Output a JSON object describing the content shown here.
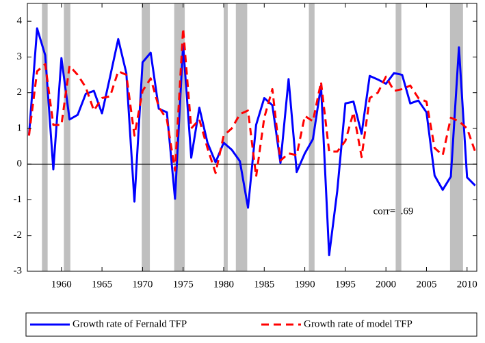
{
  "chart_data": {
    "type": "line",
    "x": [
      1956,
      1957,
      1958,
      1959,
      1960,
      1961,
      1962,
      1963,
      1964,
      1965,
      1966,
      1967,
      1968,
      1969,
      1970,
      1971,
      1972,
      1973,
      1974,
      1975,
      1976,
      1977,
      1978,
      1979,
      1980,
      1981,
      1982,
      1983,
      1984,
      1985,
      1986,
      1987,
      1988,
      1989,
      1990,
      1991,
      1992,
      1993,
      1994,
      1995,
      1996,
      1997,
      1998,
      1999,
      2000,
      2001,
      2002,
      2003,
      2004,
      2005,
      2006,
      2007,
      2008,
      2009,
      2010,
      2011
    ],
    "series": [
      {
        "name": "Growth rate of Fernald TFP",
        "color": "#0000ff",
        "dash": "solid",
        "values": [
          0.8,
          3.8,
          3.05,
          -0.15,
          2.97,
          1.25,
          1.38,
          1.97,
          2.05,
          1.42,
          2.45,
          3.5,
          2.55,
          -1.05,
          2.85,
          3.12,
          1.55,
          1.45,
          -0.97,
          3.35,
          0.18,
          1.58,
          0.6,
          0.05,
          0.6,
          0.4,
          0.08,
          -1.22,
          1.1,
          1.85,
          1.65,
          0.03,
          2.38,
          -0.22,
          0.3,
          0.7,
          2.2,
          -2.55,
          -0.75,
          1.7,
          1.75,
          0.85,
          2.47,
          2.37,
          2.25,
          2.55,
          2.5,
          1.7,
          1.78,
          1.45,
          -0.32,
          -0.72,
          -0.35,
          3.27,
          -0.37,
          -0.6
        ]
      },
      {
        "name": "Growth rate of model TFP",
        "color": "#ff0000",
        "dash": "dashed",
        "values": [
          0.8,
          2.6,
          2.8,
          1.1,
          1.1,
          2.75,
          2.5,
          2.15,
          1.5,
          1.85,
          1.9,
          2.6,
          2.5,
          0.8,
          2.05,
          2.4,
          1.6,
          1.25,
          -0.18,
          3.8,
          1.0,
          1.25,
          0.45,
          -0.25,
          0.8,
          1.0,
          1.4,
          1.5,
          -0.35,
          1.3,
          2.1,
          0.1,
          0.3,
          0.25,
          1.35,
          1.2,
          2.3,
          0.35,
          0.35,
          0.65,
          1.45,
          0.2,
          1.85,
          2.0,
          2.45,
          2.05,
          2.1,
          2.2,
          1.85,
          1.75,
          0.45,
          0.25,
          1.3,
          1.2,
          1.0,
          0.35
        ]
      }
    ],
    "recessions": [
      [
        1957.6,
        1958.3
      ],
      [
        1960.3,
        1961.1
      ],
      [
        1969.9,
        1970.9
      ],
      [
        1973.9,
        1975.2
      ],
      [
        1980.0,
        1980.5
      ],
      [
        1981.5,
        1982.9
      ],
      [
        1990.5,
        1991.2
      ],
      [
        2001.2,
        2001.9
      ],
      [
        2007.9,
        2009.5
      ]
    ],
    "recession_color": "#bfbfbf",
    "annotation": "corr=0.69",
    "xlim": [
      1955.8,
      2011.2
    ],
    "xticks": [
      1960,
      1965,
      1970,
      1975,
      1980,
      1985,
      1990,
      1995,
      2000,
      2005,
      2010
    ],
    "ylim": [
      -3,
      4.5
    ],
    "yticks": [
      -3,
      -2,
      -1,
      0,
      1,
      2,
      3,
      4
    ],
    "zero_line": true,
    "legend": "bottom"
  }
}
